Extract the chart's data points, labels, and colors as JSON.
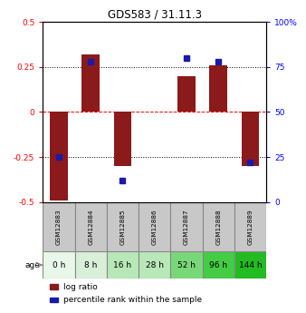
{
  "title": "GDS583 / 31.11.3",
  "samples": [
    "GSM12883",
    "GSM12884",
    "GSM12885",
    "GSM12886",
    "GSM12887",
    "GSM12888",
    "GSM12889"
  ],
  "ages": [
    "0 h",
    "8 h",
    "16 h",
    "28 h",
    "52 h",
    "96 h",
    "144 h"
  ],
  "log_ratio": [
    -0.49,
    0.32,
    -0.3,
    0.0,
    0.2,
    0.26,
    -0.3
  ],
  "percentile_rank": [
    25,
    78,
    12,
    null,
    80,
    78,
    22
  ],
  "bar_color": "#8B1A1A",
  "dot_color": "#1a1aaa",
  "ylim_left": [
    -0.5,
    0.5
  ],
  "ylim_right": [
    0,
    100
  ],
  "yticks_left": [
    -0.5,
    -0.25,
    0.0,
    0.25,
    0.5
  ],
  "yticks_right": [
    0,
    25,
    50,
    75,
    100
  ],
  "ytick_labels_left": [
    "-0.5",
    "-0.25",
    "0",
    "0.25",
    "0.5"
  ],
  "ytick_labels_right": [
    "0",
    "25",
    "50",
    "75",
    "100%"
  ],
  "hlines_black_dotted": [
    -0.25,
    0.25
  ],
  "hline_red_dashed": 0.0,
  "age_colors": [
    "#e8f8e8",
    "#d8f0d8",
    "#b8e8b8",
    "#b8e8b8",
    "#78d878",
    "#44cc44",
    "#22bb22"
  ],
  "sample_box_color": "#c8c8c8",
  "sample_box_edge": "#888888",
  "label_log_ratio": "log ratio",
  "label_percentile": "percentile rank within the sample",
  "bar_width": 0.55,
  "fig_width": 3.38,
  "fig_height": 3.45
}
